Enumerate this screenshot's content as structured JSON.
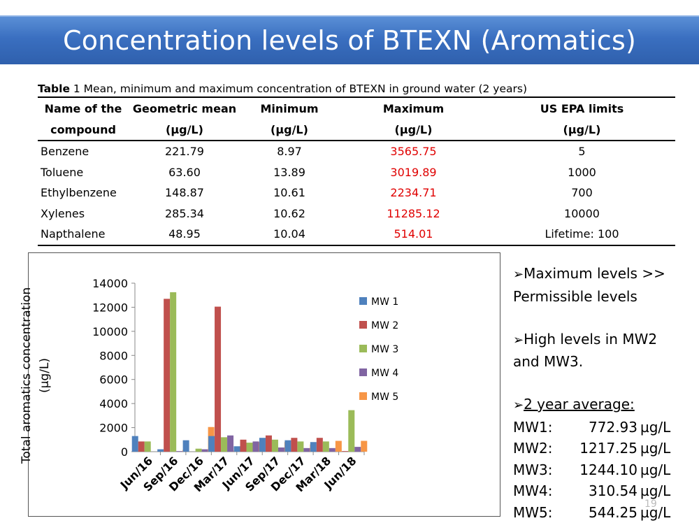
{
  "slide_title": "Concentration levels of BTEXN (Aromatics)",
  "table": {
    "caption_label": "Table",
    "caption_text": " 1 Mean, minimum and maximum concentration of BTEXN in ground water (2 years)",
    "headers": [
      {
        "line1": "Name of the",
        "line2": "compound"
      },
      {
        "line1": "Geometric mean",
        "line2": "(µg/L)"
      },
      {
        "line1": "Minimum",
        "line2": "(µg/L)"
      },
      {
        "line1": "Maximum",
        "line2": "(µg/L)"
      },
      {
        "line1": "US EPA limits",
        "line2": "(µg/L)"
      }
    ],
    "rows": [
      {
        "name": "Benzene",
        "mean": "221.79",
        "min": "8.97",
        "max": "3565.75",
        "epa": "5"
      },
      {
        "name": "Toluene",
        "mean": "63.60",
        "min": "13.89",
        "max": "3019.89",
        "epa": "1000"
      },
      {
        "name": "Ethylbenzene",
        "mean": "148.87",
        "min": "10.61",
        "max": "2234.71",
        "epa": "700"
      },
      {
        "name": "Xylenes",
        "mean": "285.34",
        "min": "10.62",
        "max": "11285.12",
        "epa": "10000"
      },
      {
        "name": "Napthalene",
        "mean": "48.95",
        "min": "10.04",
        "max": "514.01",
        "epa": "Lifetime: 100"
      }
    ],
    "max_color": "#e00000"
  },
  "chart_data": {
    "type": "bar",
    "ylabel_line1": "Total aromatics  concentration",
    "ylabel_line2": "(µg/L)",
    "ylim": [
      0,
      14000
    ],
    "yticks": [
      0,
      2000,
      4000,
      6000,
      8000,
      10000,
      12000,
      14000
    ],
    "ytick_labels": [
      "0",
      "2000",
      "4000",
      "6000",
      "8000",
      "10000",
      "12000",
      "14000"
    ],
    "categories": [
      "Jun/16",
      "Sep/16",
      "Dec/16",
      "Mar/17",
      "Jun/17",
      "Sep/17",
      "Dec/17",
      "Mar/18",
      "Jun/18"
    ],
    "legend_position": "right",
    "grid": false,
    "series": [
      {
        "name": "MW 1",
        "color": "#4f81bd",
        "values": [
          1300,
          200,
          950,
          1300,
          450,
          1150,
          950,
          800,
          0
        ]
      },
      {
        "name": "MW 2",
        "color": "#c0504d",
        "values": [
          850,
          12700,
          0,
          12050,
          1000,
          1350,
          1150,
          1150,
          50
        ]
      },
      {
        "name": "MW 3",
        "color": "#9bbb59",
        "values": [
          850,
          13250,
          250,
          1200,
          750,
          1000,
          850,
          850,
          3450
        ]
      },
      {
        "name": "MW 4",
        "color": "#8064a2",
        "values": [
          0,
          50,
          200,
          1350,
          850,
          350,
          300,
          300,
          400
        ]
      },
      {
        "name": "MW 5",
        "color": "#f79646",
        "values": [
          0,
          150,
          2050,
          100,
          800,
          800,
          600,
          900,
          900
        ]
      }
    ]
  },
  "notes": {
    "bullet_glyph": "➢",
    "bullet1_line1": "Maximum levels >>",
    "bullet1_line2": "Permissible levels",
    "bullet2_line1": "High  levels  in MW2",
    "bullet2_line2": "and MW3.",
    "bullet3_heading": "2 year average:",
    "averages": [
      {
        "label": "MW1:",
        "value": "772.93",
        "unit": "µg/L"
      },
      {
        "label": "MW2:",
        "value": "1217.25",
        "unit": "µg/L"
      },
      {
        "label": "MW3:",
        "value": "1244.10",
        "unit": "µg/L"
      },
      {
        "label": "MW4:",
        "value": "310.54",
        "unit": "µg/L"
      },
      {
        "label": "MW5:",
        "value": "544.25",
        "unit": "µg/L"
      }
    ]
  },
  "page_number": "19"
}
